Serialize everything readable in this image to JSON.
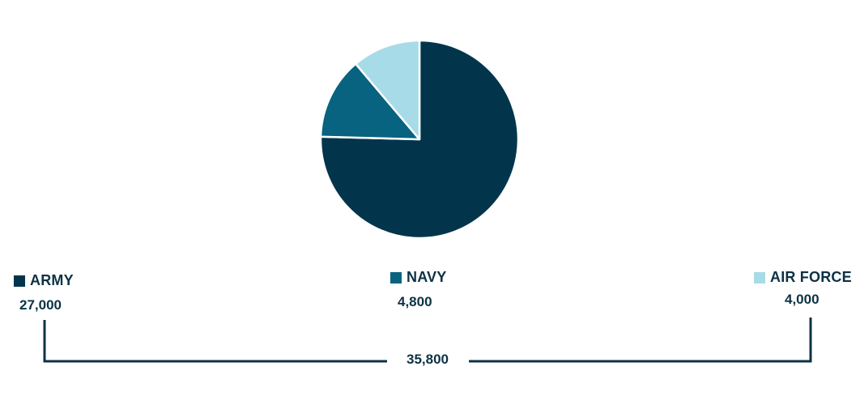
{
  "chart_data": {
    "type": "pie",
    "title": "",
    "slices": [
      {
        "label": "ARMY",
        "value": 27000,
        "value_label": "27,000",
        "color": "#02354b"
      },
      {
        "label": "NAVY",
        "value": 4800,
        "value_label": "4,800",
        "color": "#07637f"
      },
      {
        "label": "AIR FORCE",
        "value": 4000,
        "value_label": "4,000",
        "color": "#a8dbe8"
      }
    ],
    "total": 35800,
    "total_label": "35,800",
    "start_angle": "12 o'clock, clockwise",
    "legend_placement": "bottom",
    "border_color": "#ffffff",
    "text_color": "#0c3244"
  }
}
